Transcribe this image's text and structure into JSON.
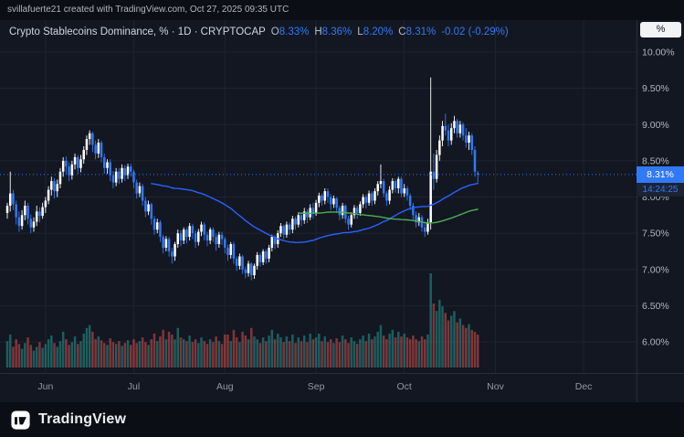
{
  "attribution": {
    "text": "svillafuerte21 created with TradingView.com, Oct 27, 2025 09:35 UTC"
  },
  "legend": {
    "title": "Crypto Stablecoins Dominance, % · 1D · CRYPTOCAP",
    "o_label": "O",
    "o_value": "8.33%",
    "h_label": "H",
    "h_value": "8.36%",
    "l_label": "L",
    "l_value": "8.20%",
    "c_label": "C",
    "c_value": "8.31%",
    "change": "-0.02 (-0.29%)"
  },
  "price_scale": {
    "mode_button": "%",
    "last_price": "8.31%",
    "countdown": "14:24:25"
  },
  "footer": {
    "brand": "TradingView"
  },
  "chart_data": {
    "type": "candlestick",
    "title": "Crypto Stablecoins Dominance, %",
    "interval": "1D",
    "source": "CRYPTOCAP",
    "ohlc": {
      "open": 8.33,
      "high": 8.36,
      "low": 8.2,
      "close": 8.31,
      "change": -0.02,
      "change_pct": -0.29
    },
    "last_price": 8.31,
    "countdown": "14:24:25",
    "y_axis": {
      "unit": "%",
      "visible_range": [
        5.75,
        10.3
      ],
      "ticks": [
        {
          "label": "10.00%",
          "value": 10.0
        },
        {
          "label": "9.50%",
          "value": 9.5
        },
        {
          "label": "9.00%",
          "value": 9.0
        },
        {
          "label": "8.50%",
          "value": 8.5
        },
        {
          "label": "8.00%",
          "value": 8.0
        },
        {
          "label": "7.50%",
          "value": 7.5
        },
        {
          "label": "7.00%",
          "value": 7.0
        },
        {
          "label": "6.50%",
          "value": 6.5
        },
        {
          "label": "6.00%",
          "value": 6.0
        }
      ]
    },
    "x_axis": {
      "ticks": [
        {
          "label": "Jun",
          "index": 13
        },
        {
          "label": "Jul",
          "index": 43
        },
        {
          "label": "Aug",
          "index": 74
        },
        {
          "label": "Sep",
          "index": 105
        },
        {
          "label": "Oct",
          "index": 135
        },
        {
          "label": "Nov",
          "index": 166
        },
        {
          "label": "Dec",
          "index": 196
        }
      ]
    },
    "ma": [
      {
        "period": 50,
        "color": "#2962ff"
      },
      {
        "period": 100,
        "color": "#4caf50"
      }
    ],
    "colors": {
      "up": "#ffffff",
      "down": "#3179f5",
      "grid": "#1e2430",
      "vol_up": "rgba(38,166,154,0.5)",
      "vol_down": "rgba(239,83,80,0.5)",
      "axis_text": "#b2b5be",
      "month_text": "#9598a1",
      "border": "#2a2e39",
      "last_line": "#3179f5",
      "accent": "#3179f5"
    },
    "candles": [
      [
        7.78,
        7.92,
        7.7,
        7.88
      ],
      [
        7.88,
        8.35,
        7.8,
        8.05
      ],
      [
        8.05,
        8.1,
        7.82,
        7.9
      ],
      [
        7.9,
        7.95,
        7.62,
        7.72
      ],
      [
        7.72,
        7.8,
        7.52,
        7.6
      ],
      [
        7.6,
        7.82,
        7.55,
        7.75
      ],
      [
        7.75,
        7.95,
        7.68,
        7.88
      ],
      [
        7.88,
        7.92,
        7.62,
        7.7
      ],
      [
        7.7,
        7.76,
        7.5,
        7.58
      ],
      [
        7.58,
        7.72,
        7.52,
        7.66
      ],
      [
        7.66,
        7.88,
        7.6,
        7.8
      ],
      [
        7.8,
        7.86,
        7.65,
        7.74
      ],
      [
        7.74,
        7.92,
        7.7,
        7.86
      ],
      [
        7.86,
        8.0,
        7.78,
        7.95
      ],
      [
        7.95,
        8.15,
        7.9,
        8.1
      ],
      [
        8.1,
        8.28,
        8.02,
        8.22
      ],
      [
        8.22,
        8.26,
        7.98,
        8.08
      ],
      [
        8.08,
        8.24,
        8.0,
        8.18
      ],
      [
        8.18,
        8.4,
        8.12,
        8.35
      ],
      [
        8.35,
        8.55,
        8.28,
        8.5
      ],
      [
        8.5,
        8.56,
        8.32,
        8.42
      ],
      [
        8.42,
        8.48,
        8.22,
        8.3
      ],
      [
        8.3,
        8.5,
        8.24,
        8.45
      ],
      [
        8.45,
        8.6,
        8.38,
        8.55
      ],
      [
        8.55,
        8.58,
        8.32,
        8.4
      ],
      [
        8.4,
        8.58,
        8.34,
        8.52
      ],
      [
        8.52,
        8.7,
        8.46,
        8.65
      ],
      [
        8.65,
        8.85,
        8.58,
        8.8
      ],
      [
        8.8,
        8.92,
        8.72,
        8.88
      ],
      [
        8.88,
        8.9,
        8.62,
        8.72
      ],
      [
        8.72,
        8.78,
        8.52,
        8.6
      ],
      [
        8.6,
        8.8,
        8.54,
        8.75
      ],
      [
        8.75,
        8.78,
        8.48,
        8.55
      ],
      [
        8.55,
        8.6,
        8.32,
        8.4
      ],
      [
        8.4,
        8.52,
        8.32,
        8.48
      ],
      [
        8.48,
        8.52,
        8.22,
        8.3
      ],
      [
        8.3,
        8.36,
        8.12,
        8.2
      ],
      [
        8.2,
        8.4,
        8.15,
        8.35
      ],
      [
        8.35,
        8.4,
        8.18,
        8.25
      ],
      [
        8.25,
        8.45,
        8.2,
        8.4
      ],
      [
        8.4,
        8.44,
        8.22,
        8.3
      ],
      [
        8.3,
        8.46,
        8.25,
        8.42
      ],
      [
        8.42,
        8.46,
        8.28,
        8.35
      ],
      [
        8.35,
        8.38,
        8.12,
        8.2
      ],
      [
        8.2,
        8.24,
        7.98,
        8.05
      ],
      [
        8.05,
        8.2,
        8.0,
        8.15
      ],
      [
        8.15,
        8.18,
        7.88,
        7.95
      ],
      [
        7.95,
        8.0,
        7.72,
        7.8
      ],
      [
        7.8,
        7.95,
        7.75,
        7.9
      ],
      [
        7.9,
        7.92,
        7.62,
        7.7
      ],
      [
        7.7,
        7.74,
        7.48,
        7.55
      ],
      [
        7.55,
        7.7,
        7.5,
        7.65
      ],
      [
        7.65,
        7.68,
        7.38,
        7.45
      ],
      [
        7.45,
        7.48,
        7.22,
        7.3
      ],
      [
        7.3,
        7.46,
        7.25,
        7.42
      ],
      [
        7.42,
        7.45,
        7.18,
        7.25
      ],
      [
        7.25,
        7.3,
        7.08,
        7.18
      ],
      [
        7.18,
        7.38,
        7.12,
        7.35
      ],
      [
        7.35,
        7.55,
        7.3,
        7.5
      ],
      [
        7.5,
        7.54,
        7.32,
        7.4
      ],
      [
        7.4,
        7.58,
        7.35,
        7.55
      ],
      [
        7.55,
        7.58,
        7.36,
        7.45
      ],
      [
        7.45,
        7.64,
        7.4,
        7.6
      ],
      [
        7.6,
        7.63,
        7.42,
        7.5
      ],
      [
        7.5,
        7.54,
        7.3,
        7.38
      ],
      [
        7.38,
        7.56,
        7.33,
        7.52
      ],
      [
        7.52,
        7.66,
        7.46,
        7.62
      ],
      [
        7.62,
        7.65,
        7.4,
        7.48
      ],
      [
        7.48,
        7.52,
        7.32,
        7.4
      ],
      [
        7.4,
        7.58,
        7.35,
        7.55
      ],
      [
        7.55,
        7.58,
        7.38,
        7.45
      ],
      [
        7.45,
        7.5,
        7.26,
        7.35
      ],
      [
        7.35,
        7.52,
        7.3,
        7.48
      ],
      [
        7.48,
        7.52,
        7.34,
        7.42
      ],
      [
        7.42,
        7.45,
        7.22,
        7.3
      ],
      [
        7.3,
        7.34,
        7.12,
        7.2
      ],
      [
        7.2,
        7.38,
        7.15,
        7.35
      ],
      [
        7.35,
        7.38,
        7.08,
        7.15
      ],
      [
        7.15,
        7.18,
        6.98,
        7.05
      ],
      [
        7.05,
        7.22,
        7.0,
        7.18
      ],
      [
        7.18,
        7.2,
        6.94,
        7.0
      ],
      [
        7.0,
        7.04,
        6.88,
        6.95
      ],
      [
        6.95,
        7.12,
        6.9,
        7.08
      ],
      [
        7.08,
        7.1,
        6.85,
        6.92
      ],
      [
        6.92,
        7.08,
        6.87,
        7.05
      ],
      [
        7.05,
        7.24,
        7.0,
        7.2
      ],
      [
        7.2,
        7.23,
        7.04,
        7.1
      ],
      [
        7.1,
        7.28,
        7.06,
        7.25
      ],
      [
        7.25,
        7.28,
        7.08,
        7.15
      ],
      [
        7.15,
        7.34,
        7.1,
        7.3
      ],
      [
        7.3,
        7.48,
        7.25,
        7.45
      ],
      [
        7.45,
        7.48,
        7.28,
        7.35
      ],
      [
        7.35,
        7.54,
        7.3,
        7.5
      ],
      [
        7.5,
        7.64,
        7.45,
        7.6
      ],
      [
        7.6,
        7.62,
        7.42,
        7.48
      ],
      [
        7.48,
        7.66,
        7.44,
        7.62
      ],
      [
        7.62,
        7.65,
        7.48,
        7.55
      ],
      [
        7.55,
        7.74,
        7.5,
        7.7
      ],
      [
        7.7,
        7.73,
        7.55,
        7.62
      ],
      [
        7.62,
        7.79,
        7.58,
        7.75
      ],
      [
        7.75,
        7.78,
        7.6,
        7.68
      ],
      [
        7.68,
        7.85,
        7.63,
        7.8
      ],
      [
        7.8,
        7.83,
        7.64,
        7.72
      ],
      [
        7.72,
        7.9,
        7.68,
        7.85
      ],
      [
        7.85,
        7.92,
        7.7,
        7.78
      ],
      [
        7.78,
        7.96,
        7.74,
        7.92
      ],
      [
        7.92,
        8.06,
        7.86,
        8.02
      ],
      [
        8.02,
        8.05,
        7.88,
        7.95
      ],
      [
        7.95,
        8.12,
        7.9,
        8.08
      ],
      [
        8.08,
        8.12,
        7.92,
        8.0
      ],
      [
        8.0,
        8.04,
        7.82,
        7.9
      ],
      [
        7.9,
        8.02,
        7.85,
        7.98
      ],
      [
        7.98,
        8.0,
        7.78,
        7.85
      ],
      [
        7.85,
        7.88,
        7.68,
        7.75
      ],
      [
        7.75,
        7.92,
        7.7,
        7.88
      ],
      [
        7.88,
        7.9,
        7.64,
        7.7
      ],
      [
        7.7,
        7.74,
        7.55,
        7.62
      ],
      [
        7.62,
        7.79,
        7.58,
        7.75
      ],
      [
        7.75,
        7.89,
        7.7,
        7.85
      ],
      [
        7.85,
        7.88,
        7.7,
        7.78
      ],
      [
        7.78,
        7.94,
        7.74,
        7.9
      ],
      [
        7.9,
        8.04,
        7.85,
        8.0
      ],
      [
        8.0,
        8.03,
        7.84,
        7.92
      ],
      [
        7.92,
        8.09,
        7.88,
        8.05
      ],
      [
        8.05,
        8.08,
        7.88,
        7.95
      ],
      [
        7.95,
        8.12,
        7.9,
        8.08
      ],
      [
        8.08,
        8.22,
        8.02,
        8.18
      ],
      [
        8.18,
        8.45,
        8.12,
        8.22
      ],
      [
        8.22,
        8.25,
        8.0,
        8.05
      ],
      [
        8.05,
        8.08,
        7.88,
        7.95
      ],
      [
        7.95,
        8.15,
        7.9,
        8.1
      ],
      [
        8.1,
        8.26,
        8.05,
        8.22
      ],
      [
        8.22,
        8.25,
        8.06,
        8.12
      ],
      [
        8.12,
        8.28,
        8.05,
        8.25
      ],
      [
        8.25,
        8.28,
        8.0,
        8.05
      ],
      [
        8.05,
        8.18,
        8.0,
        8.12
      ],
      [
        8.12,
        8.15,
        7.95,
        8.02
      ],
      [
        8.02,
        8.05,
        7.82,
        7.88
      ],
      [
        7.88,
        7.92,
        7.68,
        7.75
      ],
      [
        7.75,
        7.8,
        7.58,
        7.65
      ],
      [
        7.65,
        7.78,
        7.6,
        7.72
      ],
      [
        7.72,
        7.75,
        7.52,
        7.58
      ],
      [
        7.58,
        7.66,
        7.45,
        7.52
      ],
      [
        7.52,
        7.7,
        7.48,
        7.65
      ],
      [
        7.65,
        9.65,
        7.55,
        8.35
      ],
      [
        8.35,
        8.6,
        8.1,
        8.25
      ],
      [
        8.25,
        8.65,
        8.2,
        8.58
      ],
      [
        8.58,
        8.85,
        8.5,
        8.78
      ],
      [
        8.78,
        9.05,
        8.7,
        8.98
      ],
      [
        8.98,
        9.15,
        8.85,
        8.92
      ],
      [
        8.92,
        9.0,
        8.7,
        8.78
      ],
      [
        8.78,
        9.02,
        8.72,
        8.95
      ],
      [
        8.95,
        9.12,
        8.88,
        9.05
      ],
      [
        9.05,
        9.08,
        8.82,
        8.88
      ],
      [
        8.88,
        9.05,
        8.82,
        9.0
      ],
      [
        9.0,
        9.03,
        8.78,
        8.85
      ],
      [
        8.85,
        8.95,
        8.68,
        8.75
      ],
      [
        8.75,
        8.9,
        8.65,
        8.85
      ],
      [
        8.85,
        8.88,
        8.58,
        8.65
      ],
      [
        8.65,
        8.7,
        8.28,
        8.35
      ],
      [
        8.33,
        8.36,
        8.2,
        8.31
      ]
    ],
    "volumes": [
      28,
      35,
      22,
      30,
      25,
      20,
      26,
      32,
      24,
      18,
      22,
      27,
      21,
      25,
      30,
      34,
      26,
      22,
      28,
      38,
      30,
      24,
      27,
      33,
      25,
      28,
      36,
      42,
      45,
      38,
      30,
      33,
      29,
      26,
      24,
      31,
      27,
      25,
      28,
      23,
      26,
      29,
      24,
      30,
      26,
      28,
      32,
      27,
      24,
      30,
      36,
      28,
      33,
      40,
      30,
      38,
      35,
      30,
      42,
      32,
      30,
      28,
      34,
      27,
      30,
      26,
      32,
      28,
      25,
      30,
      27,
      33,
      28,
      25,
      35,
      35,
      28,
      40,
      32,
      27,
      38,
      34,
      30,
      42,
      33,
      30,
      26,
      32,
      28,
      34,
      40,
      30,
      36,
      32,
      27,
      33,
      28,
      35,
      26,
      32,
      28,
      34,
      27,
      36,
      30,
      32,
      36,
      28,
      33,
      27,
      30,
      26,
      31,
      27,
      34,
      30,
      26,
      32,
      28,
      25,
      30,
      34,
      28,
      36,
      30,
      33,
      38,
      45,
      34,
      30,
      36,
      40,
      32,
      38,
      33,
      36,
      32,
      30,
      34,
      30,
      28,
      33,
      30,
      35,
      100,
      68,
      60,
      72,
      65,
      58,
      50,
      55,
      60,
      48,
      52,
      45,
      42,
      46,
      40,
      38,
      35
    ]
  }
}
